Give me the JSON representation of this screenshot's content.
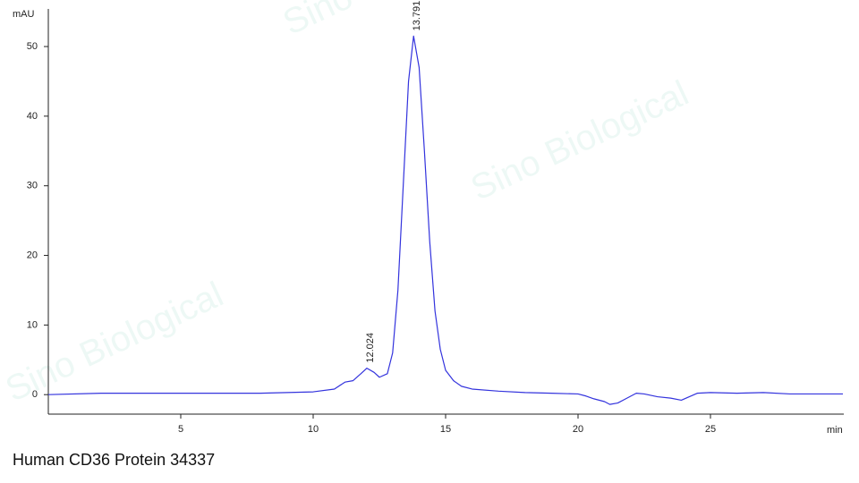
{
  "chart_data": {
    "type": "line",
    "title": "Human CD36 Protein 34337",
    "y_label": "mAU",
    "x_label": "min",
    "watermarks": [
      "Sino Biological",
      "Sino Biological",
      "Sino Biological"
    ],
    "xlim": [
      0,
      30
    ],
    "ylim": [
      -2.8,
      55.4
    ],
    "xticks": [
      5,
      10,
      15,
      20,
      25
    ],
    "yticks": [
      0,
      10,
      20,
      30,
      40,
      50
    ],
    "x": [
      0,
      2,
      4,
      6,
      8,
      10,
      10.8,
      11.2,
      11.5,
      11.8,
      12.024,
      12.3,
      12.5,
      12.8,
      13.0,
      13.2,
      13.4,
      13.6,
      13.791,
      14.0,
      14.2,
      14.4,
      14.6,
      14.8,
      15.0,
      15.3,
      15.6,
      16,
      17,
      18,
      19,
      20,
      20.3,
      20.6,
      21,
      21.2,
      21.5,
      21.8,
      22.2,
      22.5,
      23,
      23.5,
      23.9,
      24.2,
      24.5,
      25,
      26,
      27,
      28,
      29,
      30
    ],
    "series": [
      {
        "name": "signal",
        "color": "#3333dd",
        "values": [
          0,
          0.2,
          0.2,
          0.2,
          0.2,
          0.4,
          0.8,
          1.8,
          2.0,
          3.0,
          3.8,
          3.2,
          2.5,
          3.0,
          6,
          15,
          30,
          45,
          51.5,
          47,
          35,
          22,
          12,
          6.5,
          3.5,
          2,
          1.2,
          0.8,
          0.5,
          0.3,
          0.2,
          0.1,
          -0.2,
          -0.6,
          -1,
          -1.4,
          -1.2,
          -0.6,
          0.2,
          0.1,
          -0.3,
          -0.5,
          -0.8,
          -0.3,
          0.2,
          0.3,
          0.2,
          0.3,
          0.1,
          0.1,
          0.1
        ]
      }
    ],
    "annotations": [
      {
        "text": "12.024",
        "x": 12.024,
        "y": 3.8
      },
      {
        "text": "13.791",
        "x": 13.791,
        "y": 51.5
      }
    ]
  }
}
